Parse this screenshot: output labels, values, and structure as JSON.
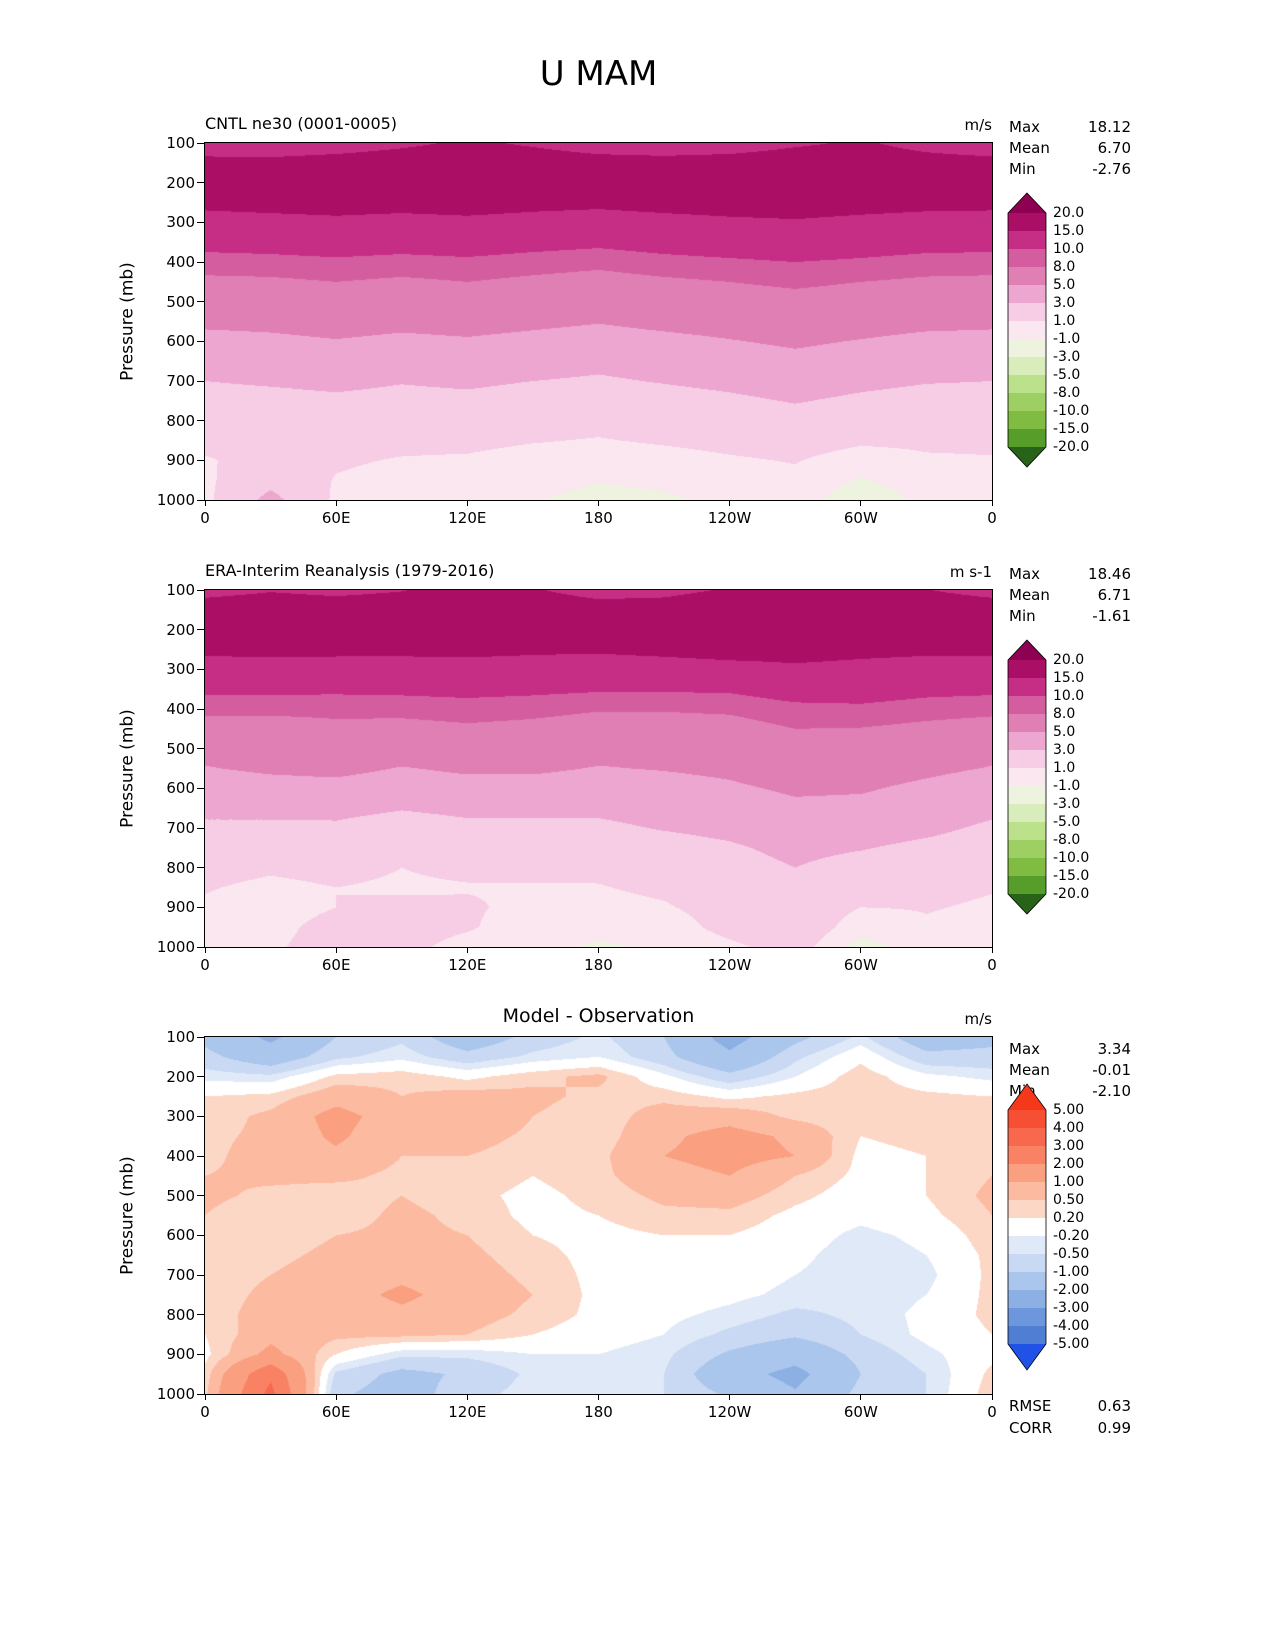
{
  "title": "U MAM",
  "axis": {
    "ylabel": "Pressure (mb)",
    "yticks": [
      "100",
      "200",
      "300",
      "400",
      "500",
      "600",
      "700",
      "800",
      "900",
      "1000"
    ],
    "xticks": [
      "0",
      "60E",
      "120E",
      "180",
      "120W",
      "60W",
      "0"
    ]
  },
  "panels": [
    {
      "title": "CNTL ne30 (0001-0005)",
      "units": "m/s",
      "stats": [
        {
          "label": "Max",
          "value": "18.12"
        },
        {
          "label": "Mean",
          "value": "6.70"
        },
        {
          "label": "Min",
          "value": "-2.76"
        }
      ],
      "colorbar_labels": [
        "20.0",
        "15.0",
        "10.0",
        "8.0",
        "5.0",
        "3.0",
        "1.0",
        "-1.0",
        "-3.0",
        "-5.0",
        "-8.0",
        "-10.0",
        "-15.0",
        "-20.0"
      ]
    },
    {
      "title": "ERA-Interim Reanalysis (1979-2016)",
      "units": "m s-1",
      "stats": [
        {
          "label": "Max",
          "value": "18.46"
        },
        {
          "label": "Mean",
          "value": "6.71"
        },
        {
          "label": "Min",
          "value": "-1.61"
        }
      ],
      "colorbar_labels": [
        "20.0",
        "15.0",
        "10.0",
        "8.0",
        "5.0",
        "3.0",
        "1.0",
        "-1.0",
        "-3.0",
        "-5.0",
        "-8.0",
        "-10.0",
        "-15.0",
        "-20.0"
      ]
    },
    {
      "title": "Model - Observation",
      "units": "m/s",
      "stats": [
        {
          "label": "Max",
          "value": "3.34"
        },
        {
          "label": "Mean",
          "value": "-0.01"
        },
        {
          "label": "Min",
          "value": "-2.10"
        }
      ],
      "colorbar_labels": [
        "5.00",
        "4.00",
        "3.00",
        "2.00",
        "1.00",
        "0.50",
        "0.20",
        "-0.20",
        "-0.50",
        "-1.00",
        "-2.00",
        "-3.00",
        "-4.00",
        "-5.00"
      ],
      "extra_stats": [
        {
          "label": "RMSE",
          "value": "0.63"
        },
        {
          "label": "CORR",
          "value": "0.99"
        }
      ]
    }
  ],
  "chart_data": [
    {
      "type": "heatmap",
      "name": "CNTL ne30 (0001-0005)",
      "units": "m/s",
      "x_name": "longitude (deg, 0-360 east)",
      "y_name": "pressure (mb)",
      "x_lon_deg": [
        0,
        30,
        60,
        90,
        120,
        150,
        180,
        210,
        240,
        270,
        300,
        330,
        360
      ],
      "y_pressure_mb": [
        100,
        150,
        200,
        250,
        300,
        350,
        400,
        450,
        500,
        550,
        600,
        650,
        700,
        750,
        800,
        850,
        900,
        950,
        1000
      ],
      "levels": [
        -20,
        -15,
        -10,
        -8,
        -5,
        -3,
        -1,
        1,
        3,
        5,
        8,
        10,
        15,
        20
      ],
      "colors_low_to_high": [
        "#276419",
        "#569d29",
        "#7fbc41",
        "#9ecf63",
        "#bce18b",
        "#d8edbb",
        "#eef3e0",
        "#fae7f0",
        "#f6cde4",
        "#eda6d0",
        "#e07fb4",
        "#d45d9f",
        "#c62e85",
        "#ab0f65",
        "#8e0152"
      ],
      "values_by_pressure": [
        [
          12.5,
          12.5,
          13.0,
          14.2,
          15.6,
          14.5,
          13.2,
          12.8,
          13.0,
          14.4,
          15.5,
          13.6,
          12.5
        ],
        [
          16.2,
          16.0,
          16.6,
          17.2,
          17.6,
          17.0,
          16.4,
          16.2,
          16.6,
          17.2,
          17.5,
          16.6,
          16.2
        ],
        [
          17.2,
          17.6,
          18.0,
          17.6,
          18.0,
          17.5,
          17.2,
          17.6,
          18.0,
          18.1,
          17.6,
          17.2,
          17.2
        ],
        [
          16.2,
          16.6,
          17.0,
          16.6,
          17.0,
          16.4,
          16.0,
          16.6,
          17.0,
          17.1,
          16.6,
          16.2,
          16.2
        ],
        [
          13.2,
          13.6,
          14.0,
          13.6,
          14.0,
          13.4,
          13.0,
          13.6,
          14.2,
          14.6,
          14.0,
          13.5,
          13.2
        ],
        [
          11.0,
          11.2,
          11.6,
          11.2,
          11.5,
          11.0,
          10.6,
          11.2,
          11.6,
          12.0,
          11.6,
          11.1,
          11.0
        ],
        [
          9.0,
          9.2,
          9.5,
          9.2,
          9.5,
          9.0,
          8.6,
          9.2,
          9.6,
          10.0,
          9.6,
          9.1,
          9.0
        ],
        [
          7.5,
          7.6,
          8.0,
          7.6,
          8.0,
          7.5,
          7.1,
          7.6,
          8.0,
          8.5,
          8.0,
          7.6,
          7.5
        ],
        [
          6.2,
          6.4,
          6.7,
          6.4,
          6.6,
          6.2,
          5.9,
          6.3,
          6.7,
          7.1,
          6.7,
          6.3,
          6.2
        ],
        [
          5.4,
          5.5,
          5.8,
          5.5,
          5.7,
          5.4,
          5.1,
          5.5,
          5.8,
          6.2,
          5.8,
          5.5,
          5.4
        ],
        [
          4.4,
          4.6,
          4.9,
          4.6,
          4.8,
          4.5,
          4.2,
          4.5,
          4.9,
          5.3,
          4.9,
          4.5,
          4.4
        ],
        [
          3.7,
          3.8,
          4.1,
          3.8,
          4.0,
          3.7,
          3.4,
          3.7,
          4.1,
          4.5,
          4.1,
          3.8,
          3.7
        ],
        [
          3.0,
          3.2,
          3.4,
          3.1,
          3.3,
          3.0,
          2.8,
          3.1,
          3.4,
          3.8,
          3.4,
          3.1,
          3.0
        ],
        [
          2.4,
          2.5,
          2.7,
          2.5,
          2.6,
          2.3,
          2.1,
          2.4,
          2.7,
          3.1,
          2.7,
          2.4,
          2.4
        ],
        [
          1.8,
          1.9,
          2.1,
          1.9,
          2.0,
          1.7,
          1.5,
          1.8,
          2.1,
          2.4,
          2.0,
          1.8,
          1.8
        ],
        [
          1.3,
          1.5,
          1.6,
          1.4,
          1.4,
          1.1,
          0.9,
          1.2,
          1.5,
          1.8,
          1.3,
          1.3,
          1.3
        ],
        [
          0.9,
          1.4,
          1.2,
          0.9,
          0.8,
          0.4,
          0.2,
          0.4,
          0.8,
          1.1,
          0.2,
          0.8,
          0.9
        ],
        [
          0.7,
          2.4,
          0.9,
          0.5,
          0.3,
          -0.3,
          -0.9,
          -0.6,
          0.2,
          0.6,
          -1.2,
          0.3,
          0.7
        ],
        [
          0.6,
          3.6,
          0.7,
          0.2,
          -0.3,
          -0.9,
          -1.6,
          -1.3,
          -0.6,
          0.2,
          -2.6,
          -0.4,
          0.6
        ]
      ]
    },
    {
      "type": "heatmap",
      "name": "ERA-Interim Reanalysis (1979-2016)",
      "units": "m s-1",
      "x_name": "longitude (deg, 0-360 east)",
      "y_name": "pressure (mb)",
      "x_lon_deg": [
        0,
        30,
        60,
        90,
        120,
        150,
        180,
        210,
        240,
        270,
        300,
        330,
        360
      ],
      "y_pressure_mb": [
        100,
        150,
        200,
        250,
        300,
        350,
        400,
        450,
        500,
        550,
        600,
        650,
        700,
        750,
        800,
        850,
        900,
        950,
        1000
      ],
      "levels": [
        -20,
        -15,
        -10,
        -8,
        -5,
        -3,
        -1,
        1,
        3,
        5,
        8,
        10,
        15,
        20
      ],
      "colors_low_to_high": [
        "#276419",
        "#569d29",
        "#7fbc41",
        "#9ecf63",
        "#bce18b",
        "#d8edbb",
        "#eef3e0",
        "#fae7f0",
        "#f6cde4",
        "#eda6d0",
        "#e07fb4",
        "#d45d9f",
        "#c62e85",
        "#ab0f65",
        "#8e0152"
      ],
      "values_by_pressure": [
        [
          13.7,
          14.7,
          14.0,
          14.8,
          17.1,
          15.3,
          13.6,
          13.8,
          15.4,
          15.6,
          15.9,
          15.1,
          13.7
        ],
        [
          17.0,
          17.5,
          17.2,
          17.5,
          18.4,
          17.4,
          16.6,
          17.0,
          18.4,
          17.8,
          17.4,
          17.4,
          17.0
        ],
        [
          17.5,
          18.0,
          17.7,
          17.2,
          17.9,
          17.1,
          16.6,
          17.7,
          18.4,
          18.3,
          17.2,
          17.3,
          17.5
        ],
        [
          16.0,
          16.3,
          16.2,
          16.1,
          16.3,
          15.8,
          15.6,
          16.2,
          16.9,
          16.8,
          16.2,
          15.9,
          16.0
        ],
        [
          12.9,
          13.0,
          12.8,
          12.9,
          13.0,
          12.9,
          12.7,
          12.9,
          13.4,
          14.2,
          13.7,
          13.1,
          12.9
        ],
        [
          10.6,
          10.6,
          10.5,
          10.6,
          10.8,
          10.6,
          10.3,
          10.3,
          10.4,
          11.4,
          11.4,
          10.8,
          10.6
        ],
        [
          8.6,
          8.5,
          8.6,
          8.7,
          9.0,
          8.7,
          8.2,
          8.2,
          8.4,
          9.3,
          9.5,
          8.9,
          8.6
        ],
        [
          7.0,
          7.0,
          7.4,
          7.2,
          7.6,
          7.3,
          6.7,
          6.8,
          7.0,
          8.0,
          7.9,
          7.4,
          7.0
        ],
        [
          5.6,
          6.0,
          6.4,
          5.9,
          6.3,
          6.1,
          5.6,
          5.7,
          6.0,
          6.8,
          6.7,
          6.1,
          5.6
        ],
        [
          4.9,
          5.3,
          5.5,
          4.9,
          5.3,
          5.3,
          4.9,
          5.1,
          5.4,
          6.1,
          5.9,
          5.4,
          4.9
        ],
        [
          4.0,
          4.3,
          4.4,
          4.0,
          4.3,
          4.3,
          4.1,
          4.3,
          4.7,
          5.3,
          5.2,
          4.6,
          4.0
        ],
        [
          3.4,
          3.4,
          3.5,
          3.1,
          3.4,
          3.4,
          3.3,
          3.6,
          4.0,
          4.6,
          4.5,
          4.0,
          3.4
        ],
        [
          2.7,
          2.7,
          2.7,
          2.2,
          2.6,
          2.6,
          2.7,
          3.1,
          3.4,
          4.0,
          3.8,
          3.4,
          2.7
        ],
        [
          2.1,
          1.9,
          1.9,
          1.4,
          1.8,
          1.8,
          2.0,
          2.4,
          2.8,
          3.4,
          3.1,
          2.6,
          2.1
        ],
        [
          1.5,
          1.2,
          1.4,
          1.0,
          1.3,
          1.3,
          1.4,
          1.9,
          2.4,
          3.0,
          2.4,
          1.9,
          1.5
        ],
        [
          1.1,
          0.7,
          1.0,
          0.8,
          0.9,
          0.9,
          0.9,
          1.4,
          2.1,
          2.7,
          1.8,
          1.4,
          1.1
        ],
        [
          0.8,
          0.4,
          1.0,
          1.3,
          1.2,
          0.6,
          0.4,
          0.8,
          1.9,
          2.7,
          1.0,
          1.1,
          0.8
        ],
        [
          0.4,
          0.6,
          1.5,
          1.7,
          1.2,
          0.1,
          -0.6,
          -0.1,
          1.8,
          2.9,
          -0.2,
          0.8,
          0.4
        ],
        [
          0.2,
          0.8,
          1.6,
          1.5,
          0.4,
          -0.6,
          -1.2,
          -0.8,
          0.5,
          2.1,
          -1.8,
          0.1,
          0.2
        ]
      ]
    },
    {
      "type": "heatmap",
      "name": "Model - Observation",
      "units": "m/s",
      "x_name": "longitude (deg, 0-360 east)",
      "y_name": "pressure (mb)",
      "x_lon_deg": [
        0,
        30,
        60,
        90,
        120,
        150,
        180,
        210,
        240,
        270,
        300,
        330,
        360
      ],
      "y_pressure_mb": [
        100,
        150,
        200,
        250,
        300,
        350,
        400,
        450,
        500,
        550,
        600,
        650,
        700,
        750,
        800,
        850,
        900,
        950,
        1000
      ],
      "levels": [
        -5,
        -4,
        -3,
        -2,
        -1,
        -0.5,
        -0.2,
        0.2,
        0.5,
        1,
        2,
        3,
        4,
        5
      ],
      "colors_low_to_high": [
        "#2152e8",
        "#4f7ed3",
        "#6d97dc",
        "#8cb0e4",
        "#abc6ec",
        "#c9d9f3",
        "#e0e9f8",
        "#ffffff",
        "#fdd7c6",
        "#fcbba1",
        "#fa9f80",
        "#f98264",
        "#f7684c",
        "#f64f33",
        "#f5371b"
      ],
      "values_by_pressure": [
        [
          -1.2,
          -2.2,
          -1.0,
          -0.6,
          -1.5,
          -0.8,
          -0.4,
          -1.0,
          -2.4,
          -1.2,
          -0.4,
          -1.5,
          -1.2
        ],
        [
          -0.8,
          -1.5,
          -0.6,
          -0.3,
          -0.8,
          -0.4,
          -0.2,
          -0.8,
          -1.8,
          -0.6,
          0.1,
          -0.8,
          -0.8
        ],
        [
          -0.3,
          -0.4,
          0.3,
          0.4,
          0.1,
          0.4,
          0.6,
          -0.1,
          -0.8,
          -0.2,
          0.4,
          -0.1,
          -0.3
        ],
        [
          0.2,
          0.3,
          0.8,
          0.5,
          0.7,
          0.6,
          0.4,
          0.4,
          0.1,
          0.3,
          0.4,
          0.3,
          0.2
        ],
        [
          0.3,
          0.6,
          1.2,
          0.7,
          1.0,
          0.5,
          0.3,
          0.7,
          0.8,
          0.4,
          0.3,
          0.4,
          0.3
        ],
        [
          0.4,
          0.6,
          1.1,
          0.6,
          0.7,
          0.4,
          0.3,
          0.9,
          1.2,
          0.9,
          0.2,
          0.3,
          0.4
        ],
        [
          0.4,
          0.7,
          0.9,
          0.5,
          0.5,
          0.3,
          0.4,
          1.0,
          1.2,
          1.0,
          0.1,
          0.2,
          0.4
        ],
        [
          0.5,
          0.6,
          0.6,
          0.4,
          0.4,
          0.2,
          0.4,
          0.8,
          1.0,
          0.5,
          0.1,
          0.2,
          0.5
        ],
        [
          0.6,
          0.4,
          0.3,
          0.5,
          0.3,
          0.1,
          0.3,
          0.6,
          0.7,
          0.3,
          0.0,
          0.2,
          0.6
        ],
        [
          0.5,
          0.2,
          0.3,
          0.6,
          0.4,
          0.1,
          0.2,
          0.4,
          0.4,
          0.1,
          -0.1,
          0.1,
          0.5
        ],
        [
          0.4,
          0.3,
          0.5,
          0.6,
          0.5,
          0.2,
          0.1,
          0.2,
          0.2,
          0.0,
          -0.3,
          -0.1,
          0.4
        ],
        [
          0.3,
          0.4,
          0.6,
          0.7,
          0.6,
          0.3,
          0.1,
          0.1,
          0.1,
          -0.1,
          -0.4,
          -0.2,
          0.3
        ],
        [
          0.3,
          0.5,
          0.7,
          0.9,
          0.7,
          0.4,
          0.1,
          0.0,
          0.0,
          -0.2,
          -0.4,
          -0.3,
          0.3
        ],
        [
          0.3,
          0.6,
          0.8,
          1.1,
          0.8,
          0.5,
          0.1,
          0.0,
          -0.1,
          -0.3,
          -0.4,
          -0.2,
          0.3
        ],
        [
          0.3,
          0.7,
          0.7,
          0.9,
          0.7,
          0.4,
          0.1,
          -0.1,
          -0.3,
          -0.6,
          -0.4,
          -0.1,
          0.3
        ],
        [
          0.2,
          0.8,
          0.6,
          0.6,
          0.5,
          0.2,
          0.0,
          -0.2,
          -0.6,
          -0.9,
          -0.5,
          -0.1,
          0.2
        ],
        [
          0.1,
          1.2,
          0.2,
          -0.4,
          -0.4,
          -0.2,
          -0.2,
          -0.4,
          -1.1,
          -1.6,
          -0.8,
          -0.3,
          0.1
        ],
        [
          0.3,
          2.8,
          -0.6,
          -1.2,
          -0.9,
          -0.4,
          -0.3,
          -0.5,
          -1.6,
          -2.3,
          -1.0,
          -0.5,
          0.3
        ],
        [
          0.4,
          3.3,
          -0.9,
          -1.3,
          -0.7,
          -0.3,
          -0.4,
          -0.5,
          -1.1,
          -1.9,
          -0.8,
          -0.5,
          0.4
        ]
      ]
    }
  ]
}
